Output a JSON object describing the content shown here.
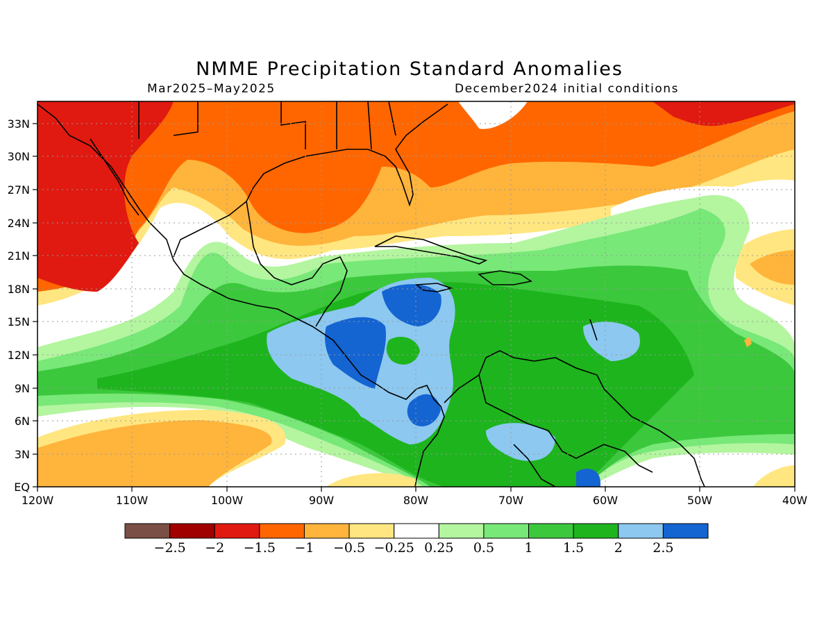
{
  "title": "NMME Precipitation Standard Anomalies",
  "subtitle_left": "Mar2025–May2025",
  "subtitle_right": "December2024 initial conditions",
  "map": {
    "lon_ticks": [
      "120W",
      "110W",
      "100W",
      "90W",
      "80W",
      "70W",
      "60W",
      "50W",
      "40W"
    ],
    "lat_ticks": [
      "EQ",
      "3N",
      "6N",
      "9N",
      "12N",
      "15N",
      "18N",
      "21N",
      "24N",
      "27N",
      "30N",
      "33N"
    ],
    "lon_range": [
      -120,
      -40
    ],
    "lat_range": [
      0,
      35
    ],
    "grid": "dotted"
  },
  "colorbar": {
    "colors": [
      "#7a4f46",
      "#a00000",
      "#e01a10",
      "#ff6600",
      "#ffb43c",
      "#ffe680",
      "#ffffff",
      "#b4f5a0",
      "#78e878",
      "#3cc83c",
      "#1eb41e",
      "#8cc8f0",
      "#1464d2"
    ],
    "labels": [
      "−2.5",
      "−2",
      "−1.5",
      "−1",
      "−0.5",
      "−0.25",
      "0.25",
      "0.5",
      "1",
      "1.5",
      "2",
      "2.5"
    ]
  }
}
